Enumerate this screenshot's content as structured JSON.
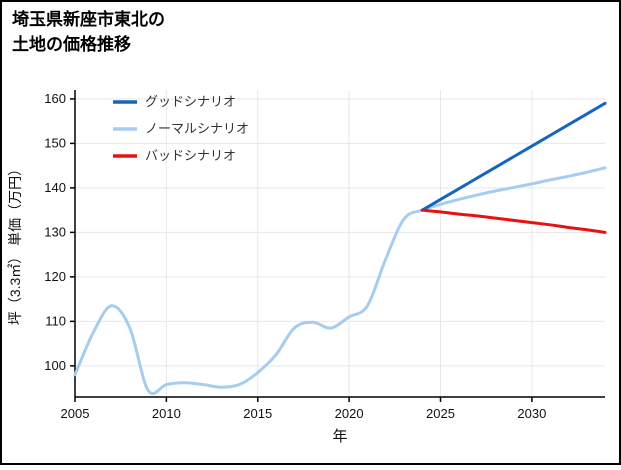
{
  "title": {
    "line1": "埼玉県新座市東北の",
    "line2": "土地の価格推移"
  },
  "chart_data": {
    "type": "line",
    "title": "埼玉県新座市東北の 土地の価格推移",
    "xlabel": "年",
    "ylabel": "坪（3.3㎡） 単価（万円）",
    "xlim": [
      2005,
      2034
    ],
    "ylim": [
      93,
      162
    ],
    "xticks": [
      2005,
      2010,
      2015,
      2020,
      2025,
      2030
    ],
    "yticks": [
      100,
      110,
      120,
      130,
      140,
      150,
      160
    ],
    "grid": true,
    "legend_position": "top-left",
    "background": "#ffffff",
    "grid_color": "#e7e7e7",
    "axis_color": "#000000",
    "series": [
      {
        "name": "グッドシナリオ",
        "color": "#1565c0",
        "x": [
          2024,
          2025,
          2026,
          2027,
          2028,
          2029,
          2030,
          2031,
          2032,
          2033,
          2034
        ],
        "y": [
          135,
          137.4,
          139.8,
          142.2,
          144.6,
          147,
          149.4,
          151.8,
          154.2,
          156.6,
          159
        ]
      },
      {
        "name": "ノーマルシナリオ",
        "color": "#a6cdf0",
        "x": [
          2005,
          2006,
          2007,
          2008,
          2009,
          2010,
          2011,
          2012,
          2013,
          2014,
          2015,
          2016,
          2017,
          2018,
          2019,
          2020,
          2021,
          2022,
          2023,
          2024,
          2025,
          2026,
          2027,
          2028,
          2029,
          2030,
          2031,
          2032,
          2033,
          2034
        ],
        "y": [
          98,
          107.5,
          113.5,
          108.5,
          94.5,
          95.8,
          96.2,
          95.8,
          95.2,
          95.8,
          98.5,
          102.5,
          108.5,
          109.8,
          108.5,
          111,
          113.5,
          124,
          133,
          135,
          136.3,
          137.4,
          138.4,
          139.3,
          140.1,
          140.9,
          141.8,
          142.6,
          143.5,
          144.5
        ]
      },
      {
        "name": "バッドシナリオ",
        "color": "#e81212",
        "x": [
          2024,
          2025,
          2026,
          2027,
          2028,
          2029,
          2030,
          2031,
          2032,
          2033,
          2034
        ],
        "y": [
          135,
          134.6,
          134.1,
          133.7,
          133.2,
          132.7,
          132.2,
          131.7,
          131.1,
          130.6,
          130
        ]
      }
    ]
  }
}
